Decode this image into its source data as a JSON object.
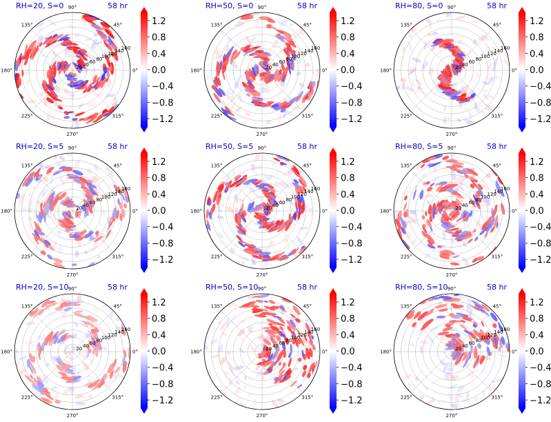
{
  "figure": {
    "time_label": "58 hr",
    "title_color": "#0000cc",
    "angle_labels": [
      "0°",
      "45°",
      "90°",
      "135°",
      "180°",
      "225°",
      "270°",
      "315°"
    ],
    "radial_tick_labels": [
      "20",
      "40",
      "60",
      "80",
      "100",
      "120",
      "140",
      "160"
    ]
  },
  "colorbar": {
    "ticks": [
      "1.2",
      "0.8",
      "0.4",
      "0.0",
      "−0.4",
      "−0.8",
      "−1.2"
    ],
    "tick_values": [
      1.2,
      0.8,
      0.4,
      0.0,
      -0.4,
      -0.8,
      -1.2
    ],
    "range": [
      -1.4,
      1.4
    ],
    "colormap": "bwr",
    "extend": "both"
  },
  "chart_data": [
    {
      "type": "heatmap",
      "projection": "polar",
      "title": "RH=20, S=0",
      "time": "58 hr",
      "r_range": [
        0,
        160
      ],
      "grid": true,
      "pattern": {
        "structure": "spiral",
        "intensity": 0.95,
        "arms": 3,
        "inner": 10,
        "coverage": 1.0,
        "spread": 0.3,
        "rotation": 0
      }
    },
    {
      "type": "heatmap",
      "projection": "polar",
      "title": "RH=50, S=0",
      "time": "58 hr",
      "r_range": [
        0,
        160
      ],
      "grid": true,
      "pattern": {
        "structure": "spiral",
        "intensity": 0.85,
        "arms": 3,
        "inner": 8,
        "coverage": 1.0,
        "spread": 0.28,
        "rotation": 40
      }
    },
    {
      "type": "heatmap",
      "projection": "polar",
      "title": "RH=80, S=0",
      "time": "58 hr",
      "r_range": [
        0,
        160
      ],
      "grid": true,
      "pattern": {
        "structure": "ring",
        "intensity": 0.9,
        "arms": 2,
        "inner": 6,
        "coverage": 0.55,
        "spread": 0.2,
        "rotation": 10
      }
    },
    {
      "type": "heatmap",
      "projection": "polar",
      "title": "RH=20, S=5",
      "time": "58 hr",
      "r_range": [
        0,
        160
      ],
      "grid": true,
      "pattern": {
        "structure": "spiral",
        "intensity": 0.7,
        "arms": 3,
        "inner": 8,
        "coverage": 1.0,
        "spread": 0.32,
        "rotation": 80
      }
    },
    {
      "type": "heatmap",
      "projection": "polar",
      "title": "RH=50, S=5",
      "time": "58 hr",
      "r_range": [
        0,
        160
      ],
      "grid": true,
      "pattern": {
        "structure": "spiral",
        "intensity": 0.9,
        "arms": 3,
        "inner": 8,
        "coverage": 0.9,
        "spread": 0.26,
        "rotation": 120
      }
    },
    {
      "type": "heatmap",
      "projection": "polar",
      "title": "RH=80, S=5",
      "time": "58 hr",
      "r_range": [
        0,
        160
      ],
      "grid": true,
      "pattern": {
        "structure": "spiral",
        "intensity": 0.8,
        "arms": 4,
        "inner": 6,
        "coverage": 1.0,
        "spread": 0.3,
        "rotation": 200
      }
    },
    {
      "type": "heatmap",
      "projection": "polar",
      "title": "RH=20, S=10",
      "time": "58 hr",
      "r_range": [
        0,
        160
      ],
      "grid": true,
      "pattern": {
        "structure": "sparse",
        "intensity": 0.55,
        "arms": 3,
        "inner": 40,
        "coverage": 1.0,
        "spread": 0.35,
        "rotation": 60
      }
    },
    {
      "type": "heatmap",
      "projection": "polar",
      "title": "RH=50, S=10",
      "time": "58 hr",
      "r_range": [
        0,
        160
      ],
      "grid": true,
      "pattern": {
        "structure": "sector",
        "intensity": 0.85,
        "arms": 2,
        "inner": 5,
        "coverage": 0.6,
        "spread": 0.25,
        "rotation": 300
      }
    },
    {
      "type": "heatmap",
      "projection": "polar",
      "title": "RH=80, S=10",
      "time": "58 hr",
      "r_range": [
        0,
        160
      ],
      "grid": true,
      "pattern": {
        "structure": "sector",
        "intensity": 0.75,
        "arms": 3,
        "inner": 5,
        "coverage": 0.75,
        "spread": 0.3,
        "rotation": 340
      }
    }
  ]
}
